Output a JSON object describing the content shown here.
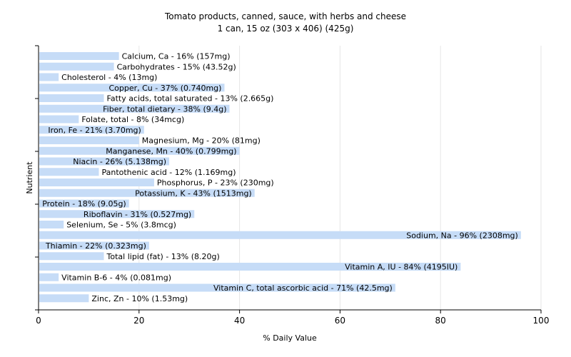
{
  "chart_data": {
    "type": "bar",
    "orientation": "horizontal",
    "title": "Tomato products, canned, sauce, with herbs and cheese",
    "subtitle": "1 can, 15 oz (303 x 406) (425g)",
    "xlabel": "% Daily Value",
    "ylabel": "Nutrient",
    "xlim": [
      0,
      100
    ],
    "xticks": [
      0,
      20,
      40,
      60,
      80,
      100
    ],
    "grid": true,
    "bar_color": "#c6dcf7",
    "grid_color": "#e6e6e6",
    "bars": [
      {
        "value": 16,
        "label": "Calcium, Ca - 16% (157mg)"
      },
      {
        "value": 15,
        "label": "Carbohydrates - 15% (43.52g)"
      },
      {
        "value": 4,
        "label": "Cholesterol - 4% (13mg)"
      },
      {
        "value": 37,
        "label": "Copper, Cu - 37% (0.740mg)"
      },
      {
        "value": 13,
        "label": "Fatty acids, total saturated - 13% (2.665g)"
      },
      {
        "value": 38,
        "label": "Fiber, total dietary - 38% (9.4g)"
      },
      {
        "value": 8,
        "label": "Folate, total - 8% (34mcg)"
      },
      {
        "value": 21,
        "label": "Iron, Fe - 21% (3.70mg)"
      },
      {
        "value": 20,
        "label": "Magnesium, Mg - 20% (81mg)"
      },
      {
        "value": 40,
        "label": "Manganese, Mn - 40% (0.799mg)"
      },
      {
        "value": 26,
        "label": "Niacin - 26% (5.138mg)"
      },
      {
        "value": 12,
        "label": "Pantothenic acid - 12% (1.169mg)"
      },
      {
        "value": 23,
        "label": "Phosphorus, P - 23% (230mg)"
      },
      {
        "value": 43,
        "label": "Potassium, K - 43% (1513mg)"
      },
      {
        "value": 18,
        "label": "Protein - 18% (9.05g)"
      },
      {
        "value": 31,
        "label": "Riboflavin - 31% (0.527mg)"
      },
      {
        "value": 5,
        "label": "Selenium, Se - 5% (3.8mcg)"
      },
      {
        "value": 96,
        "label": "Sodium, Na - 96% (2308mg)"
      },
      {
        "value": 22,
        "label": "Thiamin - 22% (0.323mg)"
      },
      {
        "value": 13,
        "label": "Total lipid (fat) - 13% (8.20g)"
      },
      {
        "value": 84,
        "label": "Vitamin A, IU - 84% (4195IU)"
      },
      {
        "value": 4,
        "label": "Vitamin B-6 - 4% (0.081mg)"
      },
      {
        "value": 71,
        "label": "Vitamin C, total ascorbic acid - 71% (42.5mg)"
      },
      {
        "value": 10,
        "label": "Zinc, Zn - 10% (1.53mg)"
      }
    ]
  }
}
